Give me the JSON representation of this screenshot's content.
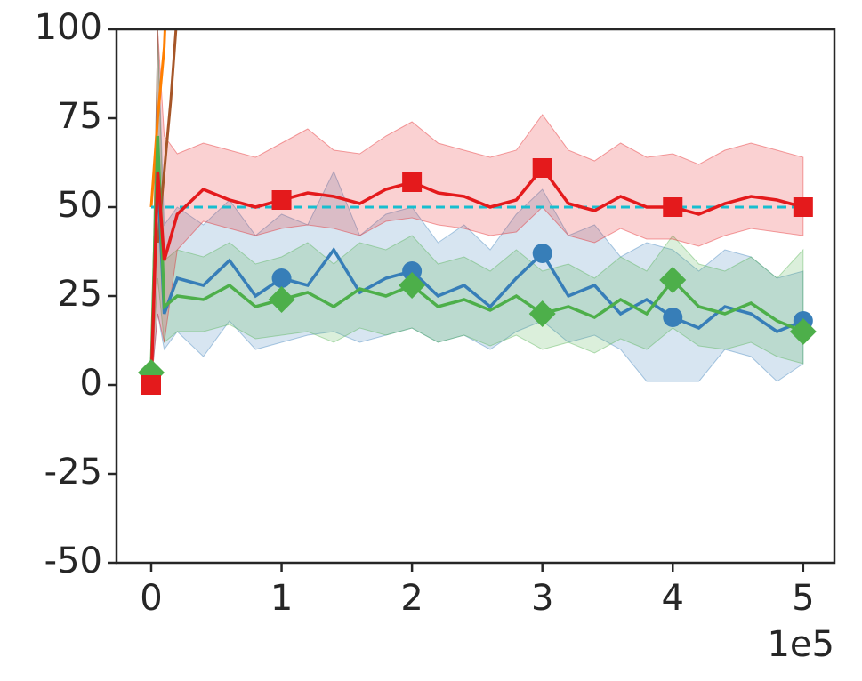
{
  "chart_data": {
    "type": "line",
    "x_offset_label": "1e5",
    "xlim": [
      -26600,
      524000
    ],
    "xticks": [
      {
        "value": 0,
        "label": "0"
      },
      {
        "value": 100000,
        "label": "1"
      },
      {
        "value": 200000,
        "label": "2"
      },
      {
        "value": 300000,
        "label": "3"
      },
      {
        "value": 400000,
        "label": "4"
      },
      {
        "value": 500000,
        "label": "5"
      }
    ],
    "ylim": [
      -50,
      100
    ],
    "yticks": [
      -50,
      -25,
      0,
      25,
      50,
      75,
      100
    ],
    "markevery": 100000,
    "x": [
      0,
      5000,
      10000,
      20000,
      40000,
      60000,
      80000,
      100000,
      120000,
      140000,
      160000,
      180000,
      200000,
      220000,
      240000,
      260000,
      280000,
      300000,
      320000,
      340000,
      360000,
      380000,
      400000,
      420000,
      440000,
      460000,
      480000,
      500000
    ],
    "series": [
      {
        "name": "blue",
        "color": "#377eb8",
        "marker": "circle",
        "values": [
          2,
          60,
          20,
          30,
          28,
          35,
          25,
          30,
          28,
          38,
          26,
          30,
          32,
          25,
          28,
          22,
          30,
          37,
          25,
          28,
          20,
          24,
          19,
          16,
          22,
          20,
          15,
          18
        ],
        "lower": [
          0,
          20,
          10,
          15,
          8,
          18,
          10,
          12,
          14,
          15,
          12,
          14,
          16,
          12,
          14,
          10,
          15,
          18,
          12,
          14,
          10,
          1,
          1,
          1,
          10,
          8,
          1,
          6
        ],
        "upper": [
          5,
          100,
          45,
          50,
          45,
          52,
          42,
          48,
          45,
          60,
          42,
          48,
          50,
          40,
          45,
          38,
          48,
          55,
          42,
          45,
          36,
          40,
          38,
          32,
          38,
          36,
          30,
          32
        ]
      },
      {
        "name": "green",
        "color": "#4daf4a",
        "marker": "diamond",
        "values": [
          3.5,
          70,
          22,
          25,
          24,
          28,
          22,
          24,
          26,
          22,
          27,
          25,
          28,
          22,
          24,
          21,
          25,
          20,
          22,
          19,
          24,
          20,
          29.5,
          22,
          20,
          23,
          18,
          15
        ],
        "lower": [
          1,
          30,
          12,
          15,
          15,
          17,
          13,
          14,
          15,
          12,
          16,
          14,
          16,
          12,
          14,
          11,
          14,
          10,
          12,
          9,
          13,
          10,
          16,
          11,
          10,
          12,
          8,
          6
        ],
        "upper": [
          8,
          100,
          35,
          38,
          36,
          40,
          34,
          36,
          40,
          34,
          40,
          38,
          42,
          34,
          36,
          32,
          38,
          32,
          34,
          30,
          36,
          32,
          42,
          34,
          32,
          36,
          30,
          38
        ]
      },
      {
        "name": "red",
        "color": "#e41a1c",
        "marker": "square",
        "values": [
          0,
          60,
          35,
          48,
          55,
          52,
          50,
          52,
          54,
          53,
          51,
          55,
          57,
          54,
          53,
          50,
          52,
          61,
          51,
          49,
          53,
          50,
          50,
          48,
          51,
          53,
          52,
          50
        ],
        "lower": [
          0,
          20,
          12,
          38,
          46,
          44,
          42,
          44,
          45,
          44,
          42,
          46,
          47,
          45,
          44,
          42,
          43,
          50,
          42,
          40,
          44,
          41,
          41,
          39,
          42,
          44,
          43,
          42
        ],
        "upper": [
          2,
          100,
          70,
          65,
          68,
          66,
          64,
          68,
          72,
          66,
          65,
          70,
          74,
          68,
          66,
          64,
          66,
          76,
          66,
          63,
          68,
          64,
          65,
          62,
          66,
          68,
          66,
          64
        ]
      }
    ],
    "extra_lines": [
      {
        "name": "orange",
        "color": "#ff7f00",
        "x": [
          0,
          5000,
          10000,
          15000
        ],
        "values": [
          50,
          75,
          95,
          140
        ]
      },
      {
        "name": "brown",
        "color": "#a65628",
        "x": [
          5000,
          15000,
          25000
        ],
        "values": [
          40,
          80,
          130
        ]
      },
      {
        "name": "cyan",
        "color": "#17becf",
        "dashed": true,
        "x": [
          0,
          500000
        ],
        "values": [
          50,
          50
        ]
      }
    ]
  }
}
